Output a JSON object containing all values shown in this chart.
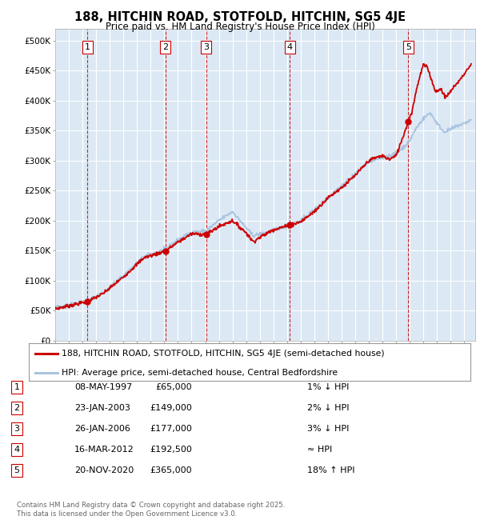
{
  "title": "188, HITCHIN ROAD, STOTFOLD, HITCHIN, SG5 4JE",
  "subtitle": "Price paid vs. HM Land Registry's House Price Index (HPI)",
  "background_color": "#ffffff",
  "plot_bg_color": "#dce9f5",
  "grid_color": "#ffffff",
  "hpi_line_color": "#aac4e0",
  "price_line_color": "#cc0000",
  "marker_color": "#cc0000",
  "dashed_line_color": "#cc0000",
  "yticks": [
    0,
    50000,
    100000,
    150000,
    200000,
    250000,
    300000,
    350000,
    400000,
    450000,
    500000
  ],
  "ylim": [
    0,
    520000
  ],
  "xlim_start": 1995.0,
  "xlim_end": 2025.8,
  "sale_points": [
    {
      "date": 1997.36,
      "price": 65000,
      "label": "1"
    },
    {
      "date": 2003.07,
      "price": 149000,
      "label": "2"
    },
    {
      "date": 2006.07,
      "price": 177000,
      "label": "3"
    },
    {
      "date": 2012.21,
      "price": 192500,
      "label": "4"
    },
    {
      "date": 2020.9,
      "price": 365000,
      "label": "5"
    }
  ],
  "legend_entries": [
    "188, HITCHIN ROAD, STOTFOLD, HITCHIN, SG5 4JE (semi-detached house)",
    "HPI: Average price, semi-detached house, Central Bedfordshire"
  ],
  "table_rows": [
    {
      "num": "1",
      "date": "08-MAY-1997",
      "price": "£65,000",
      "vs_hpi": "1% ↓ HPI"
    },
    {
      "num": "2",
      "date": "23-JAN-2003",
      "price": "£149,000",
      "vs_hpi": "2% ↓ HPI"
    },
    {
      "num": "3",
      "date": "26-JAN-2006",
      "price": "£177,000",
      "vs_hpi": "3% ↓ HPI"
    },
    {
      "num": "4",
      "date": "16-MAR-2012",
      "price": "£192,500",
      "vs_hpi": "≈ HPI"
    },
    {
      "num": "5",
      "date": "20-NOV-2020",
      "price": "£365,000",
      "vs_hpi": "18% ↑ HPI"
    }
  ],
  "footer": "Contains HM Land Registry data © Crown copyright and database right 2025.\nThis data is licensed under the Open Government Licence v3.0."
}
